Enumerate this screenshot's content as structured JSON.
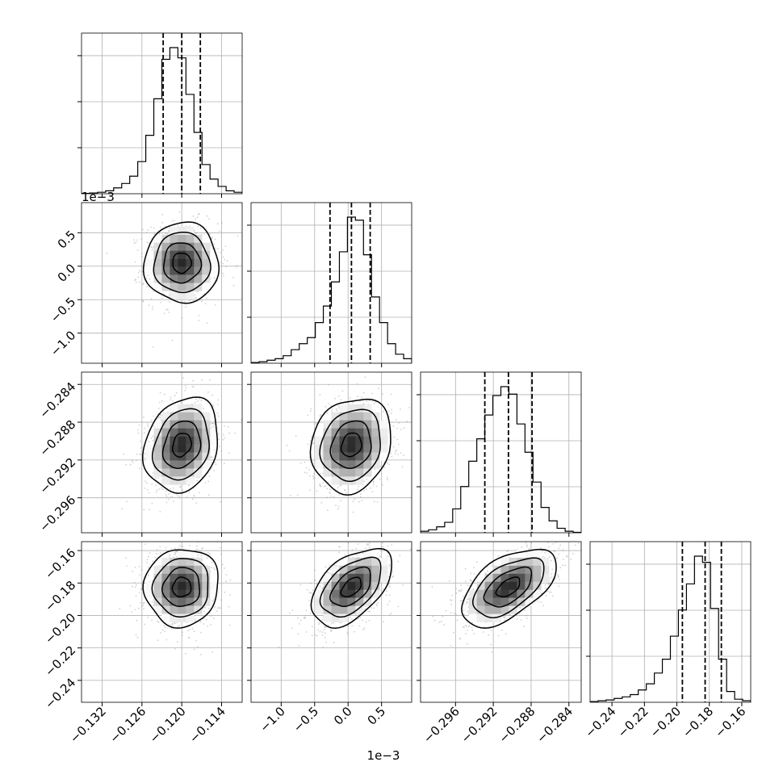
{
  "chart_data": {
    "type": "corner",
    "grid": true,
    "params": [
      {
        "range": [
          -0.1351,
          -0.1109
        ],
        "ticks": [
          -0.132,
          -0.126,
          -0.12,
          -0.114
        ],
        "tick_labels": [
          "−0.132",
          "−0.126",
          "−0.120",
          "−0.114"
        ],
        "offset_label": "",
        "quantiles": [
          -0.1228,
          -0.12,
          -0.1172
        ],
        "hist": [
          0.2,
          0.5,
          1,
          2,
          4,
          7,
          12,
          22,
          40,
          65,
          92,
          100,
          93,
          68,
          42,
          20,
          10,
          5,
          2,
          1
        ]
      },
      {
        "range": [
          -1.45,
          0.95
        ],
        "ticks": [
          -1.0,
          -0.5,
          0.0,
          0.5
        ],
        "tick_labels": [
          "−1.0",
          "−0.5",
          "0.0",
          "0.5"
        ],
        "offset_label": "1e−3",
        "quantiles": [
          -0.27,
          0.05,
          0.33
        ],
        "hist": [
          0.5,
          1,
          2,
          3,
          5,
          9,
          13,
          17,
          27,
          38,
          54,
          74,
          97,
          95,
          72,
          44,
          27,
          13,
          6,
          3
        ]
      },
      {
        "range": [
          -0.2997,
          -0.2827
        ],
        "ticks": [
          -0.296,
          -0.292,
          -0.288,
          -0.284
        ],
        "tick_labels": [
          "−0.296",
          "−0.292",
          "−0.288",
          "−0.284"
        ],
        "offset_label": "",
        "quantiles": [
          -0.2929,
          -0.2904,
          -0.2879
        ],
        "hist": [
          1,
          2,
          4,
          7,
          16,
          31,
          48,
          63,
          79,
          92,
          98,
          93,
          73,
          54,
          34,
          17,
          8,
          3,
          1,
          0.3
        ]
      },
      {
        "range": [
          -0.2535,
          -0.1545
        ],
        "ticks": [
          -0.24,
          -0.22,
          -0.2,
          -0.18,
          -0.16
        ],
        "tick_labels": [
          "−0.24",
          "−0.22",
          "−0.20",
          "−0.18",
          "−0.16"
        ],
        "offset_label": "",
        "quantiles": [
          -0.1966,
          -0.1826,
          -0.1726
        ],
        "hist": [
          0.5,
          1,
          1.5,
          2.5,
          3.5,
          5,
          8,
          12,
          19,
          28,
          43,
          60,
          77,
          95,
          91,
          61,
          28,
          7,
          2,
          1
        ]
      }
    ],
    "correlations": [
      [
        1,
        0,
        0.2,
        0.05
      ],
      [
        0,
        1,
        0.15,
        0.5
      ],
      [
        0.2,
        0.15,
        1,
        0.55
      ],
      [
        0.05,
        0.5,
        0.55,
        1
      ]
    ]
  }
}
